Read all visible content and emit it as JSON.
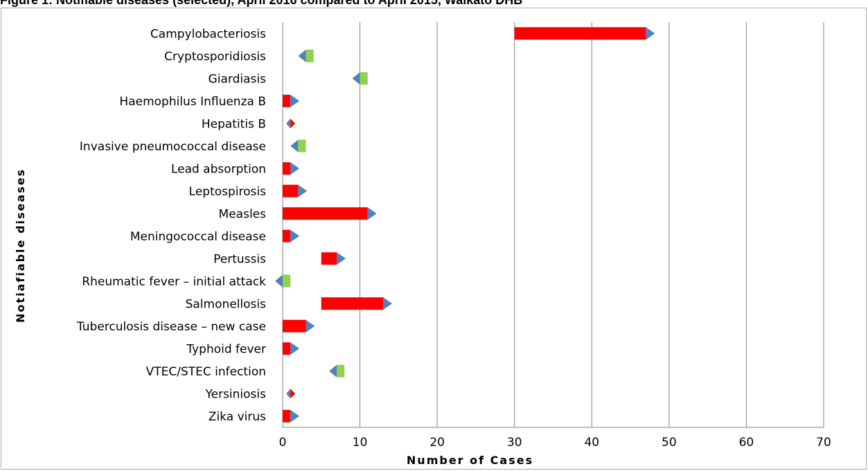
{
  "figure_title": "Figure 1: Notifiable diseases (selected), April 2016 compared to April 2015, Waikato DHB",
  "colors": {
    "increase": "#ff0000",
    "decrease": "#92d050",
    "current_marker": "#4f81bd",
    "gridline": "#808080"
  },
  "chart_data": {
    "type": "bar",
    "title": "Figure 1: Notifiable diseases (selected), April 2016 compared to April 2015, Waikato DHB",
    "xlabel": "Number of Cases",
    "ylabel": "Notiafiable diseases",
    "xlim": [
      0,
      70
    ],
    "xticks": [
      0,
      10,
      20,
      30,
      40,
      50,
      60,
      70
    ],
    "grid": true,
    "legend": "none",
    "categories": [
      "Campylobacteriosis",
      "Cryptosporidiosis",
      "Giardiasis",
      "Haemophilus Influenza B",
      "Hepatitis B",
      "Invasive pneumococcal disease",
      "Lead absorption",
      "Leptospirosis",
      "Measles",
      "Meningococcal disease",
      "Pertussis",
      "Rheumatic fever – initial attack",
      "Salmonellosis",
      "Tuberculosis disease – new case",
      "Typhoid fever",
      "VTEC/STEC infection",
      "Yersiniosis",
      "Zika virus"
    ],
    "series": [
      {
        "values_from": [
          30,
          4,
          11,
          0,
          1,
          3,
          0,
          0,
          0,
          0,
          5,
          1,
          5,
          0,
          0,
          8,
          1,
          0
        ]
      },
      {
        "values_to": [
          47,
          3,
          10,
          1,
          1,
          2,
          1,
          2,
          11,
          1,
          7,
          0,
          13,
          3,
          1,
          7,
          1,
          1
        ]
      }
    ]
  }
}
